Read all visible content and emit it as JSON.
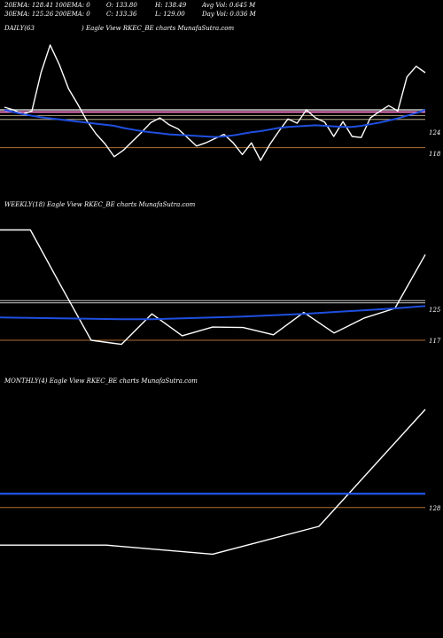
{
  "header": {
    "ema20": "20EMA: 128.41",
    "ema100": "100EMA: 0",
    "open": "O: 133.80",
    "high": "H: 138.49",
    "avgvol": "Avg Vol: 0.645 M",
    "ema30": "30EMA: 125.26",
    "ema200": "200EMA: 0",
    "close": "C: 133.36",
    "low": "L: 129.00",
    "dayvol": "Day Vol: 0.036 M"
  },
  "panels": {
    "daily_label": "DAILY(63",
    "daily_title": ") Eagle  View  RKEC_BE charts MunafaSutra.com",
    "weekly_label": "WEEKLY(18) Eagle  View  RKEC_BE charts MunafaSutra.com",
    "monthly_label": "MONTHLY(4) Eagle  View  RKEC_BE charts MunafaSutra.com"
  },
  "colors": {
    "price": "#ffffff",
    "ema": "#1f4fe0",
    "ema_light": "#3d6cff",
    "level_pink": "#ff7fd0",
    "level_grey": "#c8c8c8",
    "level_brown": "#b07030",
    "level_tan": "#d8c8a0"
  },
  "chart_data": [
    {
      "type": "line",
      "panel": "daily",
      "y_ticks": [
        "124",
        "118"
      ],
      "series": [
        {
          "values": [
            126.5,
            126.0,
            125.2,
            125.8,
            133.0,
            138.2,
            134.5,
            130.0,
            127.1,
            124.0,
            121.5,
            119.6,
            117.2,
            118.4,
            120.1,
            121.8,
            123.6,
            124.5,
            123.2,
            122.4,
            120.8,
            119.2,
            119.8,
            120.6,
            121.4,
            119.8,
            117.6,
            119.8,
            116.5,
            119.5,
            122.0,
            124.3,
            123.5,
            126.0,
            124.5,
            123.7,
            121.0,
            123.8,
            121.0,
            120.8,
            124.5,
            125.7,
            126.8,
            125.8,
            132.2,
            134.2,
            133.0
          ]
        },
        {
          "values": [
            126.0,
            125.6,
            125.2,
            124.9,
            124.6,
            124.4,
            124.2,
            124.0,
            123.8,
            123.6,
            123.4,
            123.2,
            123.0,
            122.6,
            122.3,
            122.0,
            121.8,
            121.6,
            121.4,
            121.3,
            121.2,
            121.1,
            121.0,
            120.9,
            121.0,
            121.2,
            121.5,
            121.8,
            122.0,
            122.3,
            122.6,
            122.8,
            122.9,
            123.0,
            123.1,
            123.0,
            122.9,
            122.8,
            122.8,
            123.0,
            123.3,
            123.6,
            124.0,
            124.4,
            124.9,
            125.4,
            126.0
          ]
        }
      ],
      "levels": [
        126.0,
        125.6,
        124.9,
        124.2,
        118.9
      ]
    },
    {
      "type": "line",
      "panel": "weekly",
      "y_ticks": [
        "125",
        "117"
      ],
      "series": [
        {
          "values": [
            141.2,
            141.2,
            129.0,
            117.0,
            116.1,
            122.8,
            118.0,
            119.9,
            119.8,
            118.2,
            123.1,
            118.6,
            121.9,
            124.0,
            135.8
          ]
        },
        {
          "values": [
            122.0,
            121.9,
            121.8,
            121.7,
            121.6,
            121.6,
            121.8,
            122.0,
            122.2,
            122.5,
            122.8,
            123.2,
            123.6,
            124.0,
            124.5
          ]
        }
      ],
      "levels": [
        125.7,
        125.2,
        117.0
      ]
    },
    {
      "type": "line",
      "panel": "monthly",
      "y_ticks": [
        "128"
      ],
      "series": [
        {
          "values": [
            122.7,
            122.7,
            121.4,
            125.4,
            142.2
          ]
        },
        {
          "values": [
            130.1,
            130.1,
            130.1,
            130.1,
            130.1
          ]
        }
      ],
      "levels": [
        130.1,
        128.1
      ]
    }
  ]
}
